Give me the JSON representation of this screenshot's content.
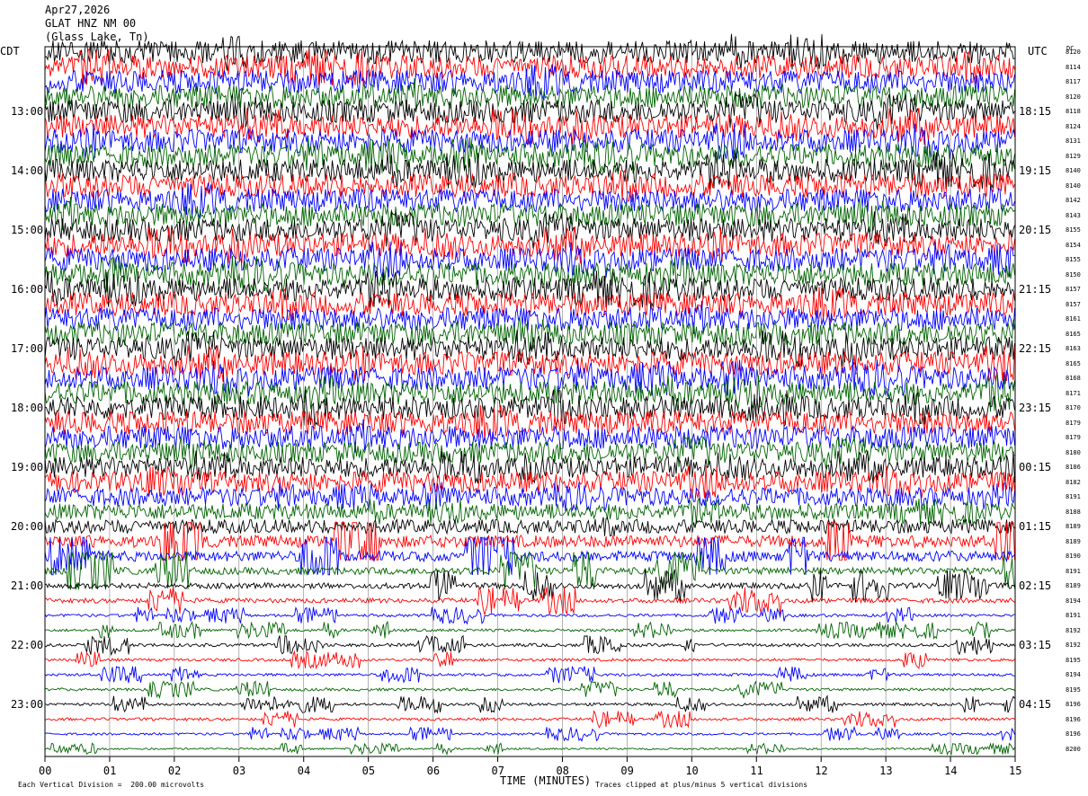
{
  "header": {
    "date": "Apr27,2026",
    "station": "GLAT HNZ NM 00",
    "location": "(Glass Lake, Tn)"
  },
  "left_tz": "CDT",
  "right_tz": "UTC",
  "dc_label": "DC",
  "footer": {
    "vertical_division": "Each Vertical Division =  200.00 microvolts",
    "clip_note": "Traces clipped at plus/minus 5 vertical divisions"
  },
  "chart_data": {
    "type": "line",
    "title": "GLAT HNZ NM 00",
    "xlabel": "TIME (MINUTES)",
    "ylabel": "",
    "xlim": [
      0,
      15
    ],
    "x_ticks": [
      "00",
      "01",
      "02",
      "03",
      "04",
      "05",
      "06",
      "07",
      "08",
      "09",
      "10",
      "11",
      "12",
      "13",
      "14",
      "15"
    ],
    "left_hour_labels": [
      "13:00",
      "14:00",
      "15:00",
      "16:00",
      "17:00",
      "18:00",
      "19:00",
      "20:00",
      "21:00",
      "22:00",
      "23:00"
    ],
    "right_hour_labels": [
      "18:15",
      "19:15",
      "20:15",
      "21:15",
      "22:15",
      "23:15",
      "00:15",
      "01:15",
      "02:15",
      "03:15",
      "04:15"
    ],
    "trace_colors": [
      "#000000",
      "#ff0000",
      "#0000ff",
      "#006400"
    ],
    "trace_minutes": 15,
    "dc_offsets": [
      8120,
      8114,
      8117,
      8120,
      8118,
      8124,
      8131,
      8129,
      8140,
      8140,
      8142,
      8143,
      8155,
      8154,
      8155,
      8150,
      8157,
      8157,
      8161,
      8165,
      8163,
      8165,
      8168,
      8171,
      8170,
      8179,
      8179,
      8180,
      8186,
      8182,
      8191,
      8188,
      8189,
      8189,
      8190,
      8191,
      8189,
      8194,
      8191,
      8192,
      8192,
      8195,
      8194,
      8195,
      8196,
      8196,
      8196,
      8200
    ],
    "amplitude_profile": [
      5,
      5,
      5,
      5,
      5,
      5,
      5,
      5,
      5,
      5,
      5,
      5,
      5,
      5,
      5,
      5,
      5,
      5,
      5,
      5,
      5,
      5,
      5,
      5,
      5,
      5,
      5,
      4.5,
      4.5,
      4.5,
      4,
      3.5,
      3,
      2.6,
      2.2,
      1.5,
      1.2,
      1,
      0.6,
      0.6,
      0.7,
      0.6,
      0.6,
      0.6,
      0.6,
      0.6,
      0.5,
      0.4
    ],
    "clip_divisions": 5,
    "vertical_division_microvolts": 200.0
  }
}
